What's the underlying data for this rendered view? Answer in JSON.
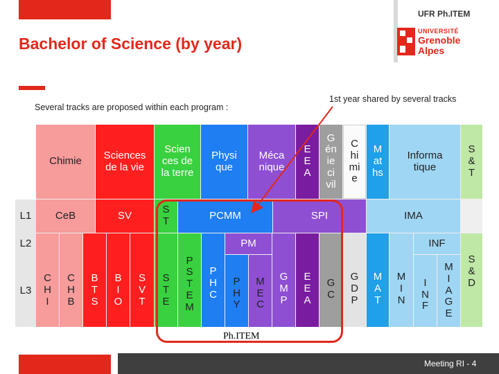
{
  "slide": {
    "title": "Bachelor of Science (by year)",
    "left_note": "Several tracks are proposed within each program :",
    "right_note": "1st year shared by several tracks",
    "footer": "Meeting RI - 4",
    "highlight_label": "Ph.ITEM"
  },
  "logo": {
    "top": "UFR Ph.ITEM",
    "university": "UNIVERSITÉ",
    "name": "Grenoble\nAlpes"
  },
  "chart_data": {
    "type": "table",
    "rows": [
      "L1",
      "L2",
      "L3"
    ],
    "programs": [
      {
        "label": "Chimie",
        "color": "#f79b9b"
      },
      {
        "label": "Sciences\nde la vie",
        "color": "#ff1f1f"
      },
      {
        "label": "Scien\nces de\nla terre",
        "color": "#39d13f"
      },
      {
        "label": "Physi\nque",
        "color": "#1f7ef2"
      },
      {
        "label": "Méca\nnique",
        "color": "#8e4fd3"
      },
      {
        "label": "E\nE\nA",
        "color": "#7a1ca0"
      },
      {
        "label": "G\nén\nie\nci\nvil",
        "color": "#9e9e9e"
      },
      {
        "label": "C\nhi\nmi\ne",
        "color": "#fbfbfb"
      },
      {
        "label": "M\nat\nhs",
        "color": "#1fa0e8"
      },
      {
        "label": "Informa\ntique",
        "color": "#9fd6f4"
      },
      {
        "label": "S\n&\nT",
        "color": "#bfe8a6"
      }
    ],
    "L1": [
      "CeB",
      "SV",
      "S\nT",
      "PCMM",
      "SPI",
      "IMA"
    ],
    "L2_L3_shared": [
      "PM",
      "INF"
    ],
    "L3": [
      "C\nH\nI",
      "C\nH\nB",
      "B\nT\nS",
      "B\nI\nO",
      "S\nV\nT",
      "S\nT\nE",
      "P\nS\nT\nE\nM",
      "P\nH\nC",
      "P\nH\nY",
      "M\nE\nC",
      "G\nM\nP",
      "E\nE\nA",
      "G\nC",
      "G\nD\nP",
      "M\nA\nT",
      "M\nI\nN",
      "I\nN\nF",
      "M\nI\nA\nG\nE",
      "S\n&\nD"
    ]
  },
  "colors": {
    "accent_red": "#e2281b",
    "footer_dark": "#3f3f3f"
  }
}
